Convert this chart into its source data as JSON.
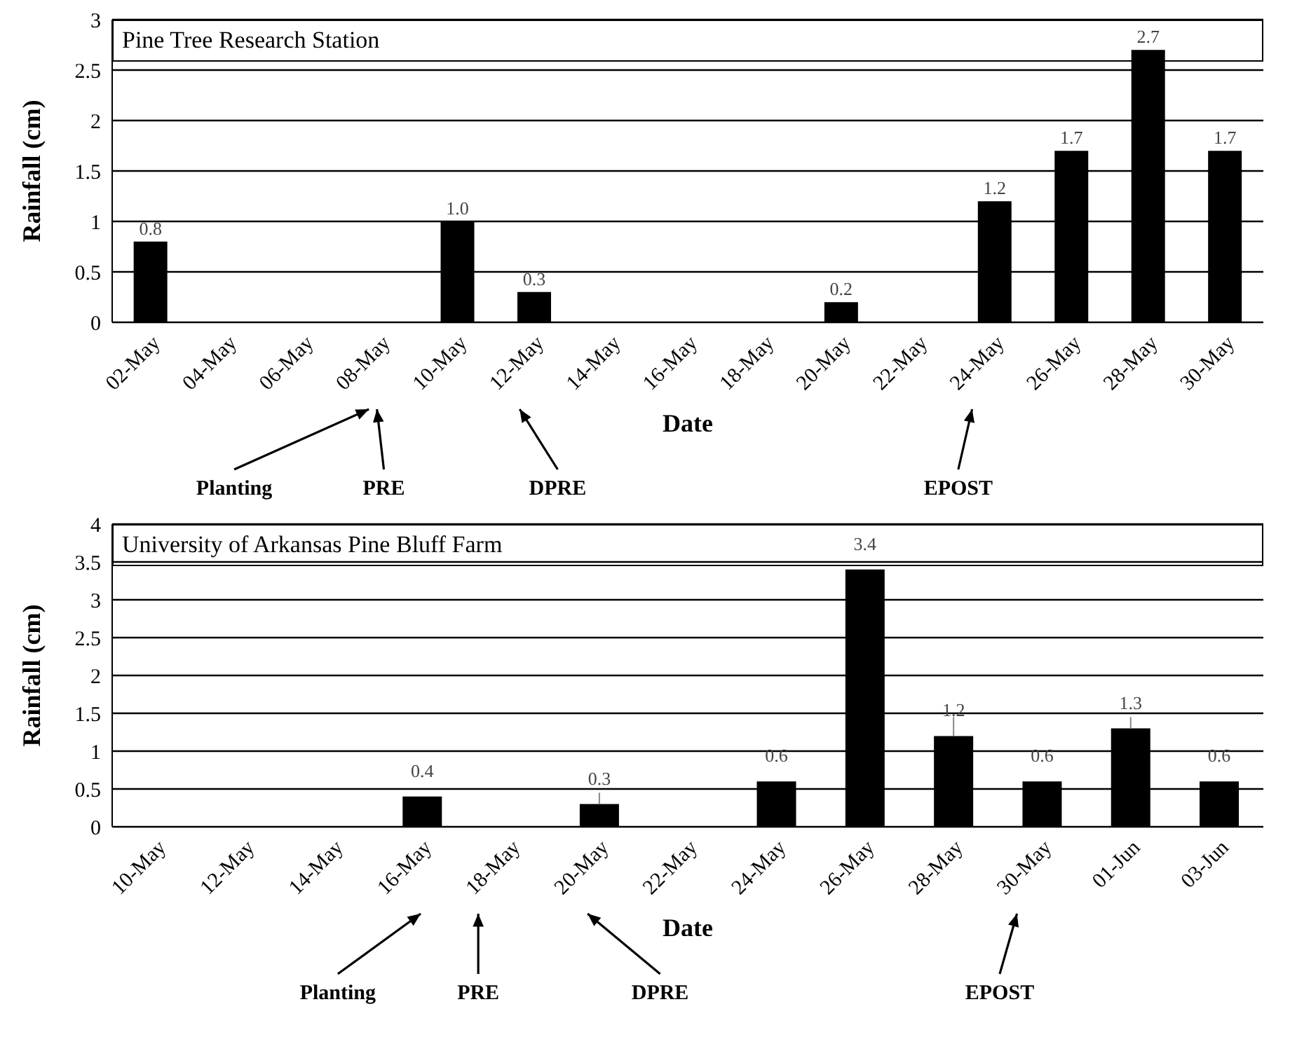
{
  "chart_data": [
    {
      "type": "bar",
      "title": "Pine Tree Research Station",
      "xlabel": "Date",
      "ylabel": "Rainfall (cm)",
      "categories": [
        "02-May",
        "04-May",
        "06-May",
        "08-May",
        "10-May",
        "12-May",
        "14-May",
        "16-May",
        "18-May",
        "20-May",
        "22-May",
        "24-May",
        "26-May",
        "28-May",
        "30-May"
      ],
      "series": [
        {
          "color": "#000000",
          "values": [
            0.8,
            null,
            null,
            null,
            1.0,
            0.3,
            null,
            null,
            null,
            0.2,
            null,
            1.2,
            1.7,
            2.7,
            1.7
          ],
          "value_labels": [
            "0.8",
            null,
            null,
            null,
            "1.0",
            "0.3",
            null,
            null,
            null,
            "0.2",
            null,
            "1.2",
            "1.7",
            "2.7",
            "1.7"
          ]
        }
      ],
      "ylim": [
        0,
        3
      ],
      "yticks": [
        0,
        0.5,
        1,
        1.5,
        2,
        2.5,
        3
      ],
      "grid": "y",
      "legend": false,
      "annotations": [
        "Planting",
        "PRE",
        "DPRE",
        "EPOST"
      ]
    },
    {
      "type": "bar",
      "title": "University of Arkansas Pine Bluff Farm",
      "xlabel": "Date",
      "ylabel": "Rainfall (cm)",
      "categories": [
        "10-May",
        "12-May",
        "14-May",
        "16-May",
        "18-May",
        "20-May",
        "22-May",
        "24-May",
        "26-May",
        "28-May",
        "30-May",
        "01-Jun",
        "03-Jun"
      ],
      "series": [
        {
          "color": "#000000",
          "values": [
            null,
            null,
            null,
            0.4,
            null,
            0.3,
            null,
            0.6,
            3.4,
            1.2,
            0.6,
            1.3,
            0.6
          ],
          "errors": [
            null,
            null,
            null,
            null,
            null,
            [
              0.3,
              0.45
            ],
            null,
            null,
            null,
            [
              1.2,
              1.45
            ],
            null,
            [
              1.3,
              1.45
            ],
            null
          ]
        }
      ],
      "ylim": [
        0,
        4
      ],
      "yticks": [
        0,
        0.5,
        1,
        1.5,
        2,
        2.5,
        3,
        3.5,
        4
      ],
      "grid": "y",
      "legend": false,
      "data_labels": true,
      "annotations": [
        "Planting",
        "PRE",
        "DPRE",
        "EPOST"
      ]
    }
  ]
}
